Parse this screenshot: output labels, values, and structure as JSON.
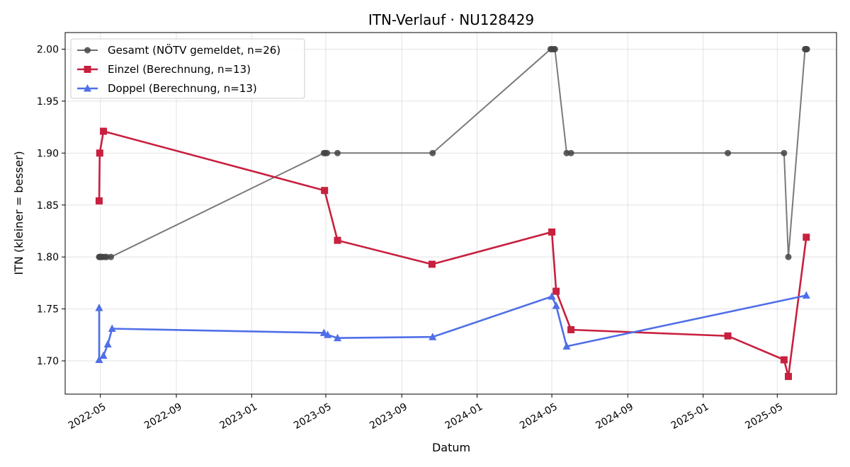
{
  "chart_data": {
    "type": "line",
    "title": "ITN-Verlauf · NU128429",
    "xlabel": "Datum",
    "ylabel": "ITN  (kleiner = besser)",
    "x_axis_type": "date",
    "xlim": [
      "2022-03-05",
      "2025-08-05"
    ],
    "ylim": [
      1.668,
      2.016
    ],
    "x_ticks": [
      "2022-05-01",
      "2022-09-01",
      "2023-01-01",
      "2023-05-01",
      "2023-09-01",
      "2024-01-01",
      "2024-05-01",
      "2024-09-01",
      "2025-01-01",
      "2025-05-01"
    ],
    "x_tick_labels": [
      "2022-05",
      "2022-09",
      "2023-01",
      "2023-05",
      "2023-09",
      "2024-01",
      "2024-05",
      "2024-09",
      "2025-01",
      "2025-05"
    ],
    "y_ticks": [
      1.7,
      1.75,
      1.8,
      1.85,
      1.9,
      1.95,
      2.0
    ],
    "y_tick_labels": [
      "1.70",
      "1.75",
      "1.80",
      "1.85",
      "1.90",
      "1.95",
      "2.00"
    ],
    "grid": true,
    "legend_position": "top-left",
    "series": [
      {
        "name": "Gesamt (NÖTV gemeldet, n=26)",
        "color": "#6b6b6b",
        "marker": "circle",
        "points": [
          [
            "2022-04-29",
            1.8
          ],
          [
            "2022-04-30",
            1.8
          ],
          [
            "2022-05-01",
            1.8
          ],
          [
            "2022-05-02",
            1.8
          ],
          [
            "2022-05-04",
            1.8
          ],
          [
            "2022-05-08",
            1.8
          ],
          [
            "2022-05-11",
            1.8
          ],
          [
            "2022-05-18",
            1.8
          ],
          [
            "2023-04-28",
            1.9
          ],
          [
            "2023-04-30",
            1.9
          ],
          [
            "2023-05-03",
            1.9
          ],
          [
            "2023-05-20",
            1.9
          ],
          [
            "2023-10-21",
            1.9
          ],
          [
            "2024-04-29",
            2.0
          ],
          [
            "2024-05-01",
            2.0
          ],
          [
            "2024-05-04",
            2.0
          ],
          [
            "2024-05-06",
            2.0
          ],
          [
            "2024-05-25",
            1.9
          ],
          [
            "2024-06-01",
            1.9
          ],
          [
            "2025-02-10",
            1.9
          ],
          [
            "2025-05-12",
            1.9
          ],
          [
            "2025-05-19",
            1.8
          ],
          [
            "2025-06-15",
            2.0
          ],
          [
            "2025-06-16",
            2.0
          ],
          [
            "2025-06-17",
            2.0
          ],
          [
            "2025-06-18",
            2.0
          ]
        ]
      },
      {
        "name": "Einzel (Berechnung, n=13)",
        "color": "#c8203f",
        "marker": "square",
        "points": [
          [
            "2022-04-29",
            1.854
          ],
          [
            "2022-04-30",
            1.9
          ],
          [
            "2022-05-06",
            1.921
          ],
          [
            "2023-04-29",
            1.864
          ],
          [
            "2023-05-20",
            1.816
          ],
          [
            "2023-10-20",
            1.793
          ],
          [
            "2024-05-01",
            1.824
          ],
          [
            "2024-05-08",
            1.767
          ],
          [
            "2024-06-01",
            1.73
          ],
          [
            "2025-02-10",
            1.724
          ],
          [
            "2025-05-12",
            1.701
          ],
          [
            "2025-05-19",
            1.685
          ],
          [
            "2025-06-17",
            1.819
          ]
        ]
      },
      {
        "name": "Doppel (Berechnung, n=13)",
        "color": "#4f6fe8",
        "marker": "triangle",
        "points": [
          [
            "2022-04-29",
            1.751
          ],
          [
            "2022-04-29",
            1.701
          ],
          [
            "2022-05-06",
            1.705
          ],
          [
            "2022-05-13",
            1.716
          ],
          [
            "2022-05-20",
            1.731
          ],
          [
            "2023-04-28",
            1.727
          ],
          [
            "2023-05-04",
            1.725
          ],
          [
            "2023-05-20",
            1.722
          ],
          [
            "2023-10-21",
            1.723
          ],
          [
            "2024-05-01",
            1.762
          ],
          [
            "2024-05-08",
            1.753
          ],
          [
            "2024-05-25",
            1.714
          ],
          [
            "2025-06-17",
            1.763
          ]
        ]
      }
    ]
  }
}
